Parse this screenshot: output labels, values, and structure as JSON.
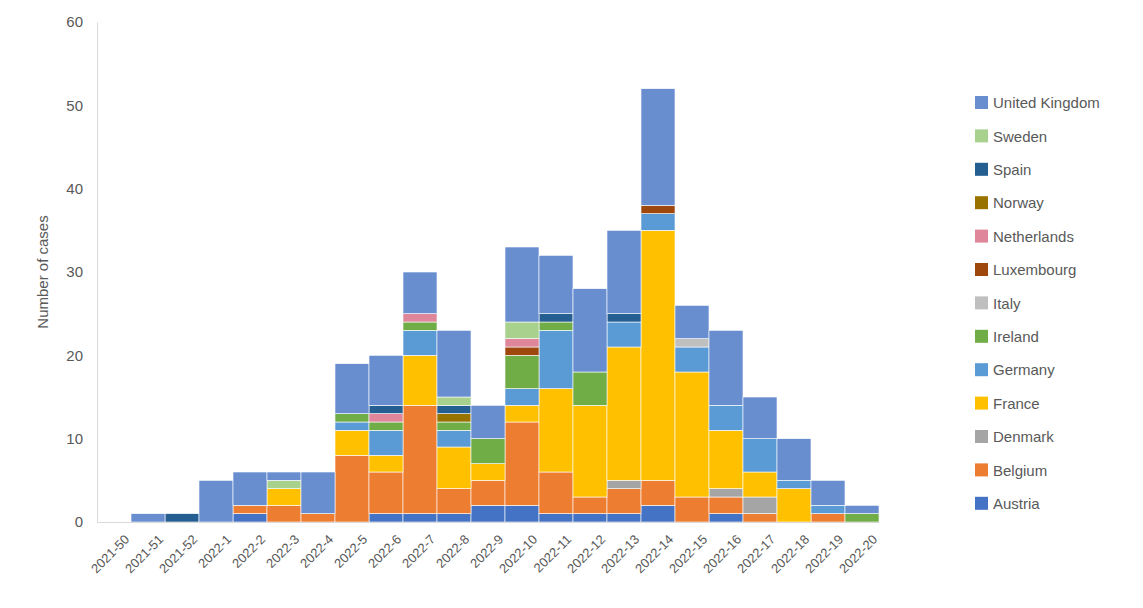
{
  "chart_data": {
    "type": "bar",
    "stacked": true,
    "y_label": "Number of cases",
    "legend": "right",
    "grid": false,
    "ylim": [
      0,
      60
    ],
    "yticks": [
      0,
      10,
      20,
      30,
      40,
      50,
      60
    ],
    "categories": [
      "2021-50",
      "2021-51",
      "2021-52",
      "2022-1",
      "2022-2",
      "2022-3",
      "2022-4",
      "2022-5",
      "2022-6",
      "2022-7",
      "2022-8",
      "2022-9",
      "2022-10",
      "2022-11",
      "2022-12",
      "2022-13",
      "2022-14",
      "2022-15",
      "2022-16",
      "2022-17",
      "2022-18",
      "2022-19",
      "2022-20"
    ],
    "series": [
      {
        "name": "Austria",
        "color": "#4472c4",
        "values": [
          0,
          0,
          0,
          0,
          1,
          0,
          0,
          0,
          1,
          1,
          1,
          2,
          2,
          1,
          1,
          1,
          2,
          0,
          1,
          0,
          0,
          0,
          0
        ]
      },
      {
        "name": "Belgium",
        "color": "#ed7d31",
        "values": [
          0,
          0,
          0,
          0,
          1,
          2,
          1,
          8,
          5,
          13,
          3,
          3,
          10,
          5,
          2,
          3,
          3,
          3,
          2,
          1,
          0,
          1,
          0
        ]
      },
      {
        "name": "Denmark",
        "color": "#a5a5a5",
        "values": [
          0,
          0,
          0,
          0,
          0,
          0,
          0,
          0,
          0,
          0,
          0,
          0,
          0,
          0,
          0,
          1,
          0,
          0,
          1,
          2,
          0,
          0,
          0
        ]
      },
      {
        "name": "France",
        "color": "#ffc000",
        "values": [
          0,
          0,
          0,
          0,
          0,
          2,
          0,
          3,
          2,
          6,
          5,
          2,
          2,
          10,
          11,
          16,
          30,
          15,
          7,
          3,
          4,
          0,
          0
        ]
      },
      {
        "name": "Germany",
        "color": "#5b9bd5",
        "values": [
          0,
          0,
          0,
          0,
          0,
          0,
          0,
          1,
          3,
          3,
          2,
          0,
          2,
          7,
          0,
          3,
          2,
          3,
          3,
          4,
          1,
          1,
          0
        ]
      },
      {
        "name": "Ireland",
        "color": "#70ad47",
        "values": [
          0,
          0,
          0,
          0,
          0,
          0,
          0,
          1,
          1,
          1,
          1,
          3,
          4,
          1,
          4,
          0,
          0,
          0,
          0,
          0,
          0,
          0,
          1
        ]
      },
      {
        "name": "Italy",
        "color": "#bfbfbf",
        "values": [
          0,
          0,
          0,
          0,
          0,
          0,
          0,
          0,
          0,
          0,
          0,
          0,
          0,
          0,
          0,
          0,
          0,
          1,
          0,
          0,
          0,
          0,
          0
        ]
      },
      {
        "name": "Luxembourg",
        "color": "#9e480e",
        "values": [
          0,
          0,
          0,
          0,
          0,
          0,
          0,
          0,
          0,
          0,
          0,
          0,
          1,
          0,
          0,
          0,
          1,
          0,
          0,
          0,
          0,
          0,
          0
        ]
      },
      {
        "name": "Netherlands",
        "color": "#e0869a",
        "values": [
          0,
          0,
          0,
          0,
          0,
          0,
          0,
          0,
          1,
          1,
          0,
          0,
          1,
          0,
          0,
          0,
          0,
          0,
          0,
          0,
          0,
          0,
          0
        ]
      },
      {
        "name": "Norway",
        "color": "#997300",
        "values": [
          0,
          0,
          0,
          0,
          0,
          0,
          0,
          0,
          0,
          0,
          1,
          0,
          0,
          0,
          0,
          0,
          0,
          0,
          0,
          0,
          0,
          0,
          0
        ]
      },
      {
        "name": "Spain",
        "color": "#255e91",
        "values": [
          0,
          0,
          1,
          0,
          0,
          0,
          0,
          0,
          1,
          0,
          1,
          0,
          0,
          1,
          0,
          1,
          0,
          0,
          0,
          0,
          0,
          0,
          0
        ]
      },
      {
        "name": "Sweden",
        "color": "#a9d18e",
        "values": [
          0,
          0,
          0,
          0,
          0,
          1,
          0,
          0,
          0,
          0,
          1,
          0,
          2,
          0,
          0,
          0,
          0,
          0,
          0,
          0,
          0,
          0,
          0
        ]
      },
      {
        "name": "United Kingdom",
        "color": "#698ed0",
        "values": [
          0,
          1,
          0,
          5,
          4,
          1,
          5,
          6,
          6,
          5,
          8,
          4,
          9,
          7,
          10,
          10,
          14,
          4,
          9,
          5,
          5,
          3,
          1
        ]
      }
    ]
  }
}
